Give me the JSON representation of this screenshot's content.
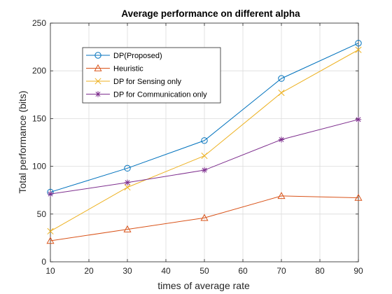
{
  "chart_data": {
    "type": "line",
    "title": "Average performance on different alpha",
    "xlabel": "times of average rate",
    "ylabel": "Total performance (bits)",
    "xlim": [
      10,
      90
    ],
    "ylim": [
      0,
      250
    ],
    "xticks": [
      10,
      20,
      30,
      40,
      50,
      60,
      70,
      80,
      90
    ],
    "yticks": [
      0,
      50,
      100,
      150,
      200,
      250
    ],
    "grid": true,
    "legend_position": "upper-left",
    "x": [
      10,
      30,
      50,
      70,
      90
    ],
    "series": [
      {
        "name": "DP(Proposed)",
        "color": "#0072BD",
        "marker": "circle",
        "values": [
          73,
          98,
          127,
          192,
          229
        ]
      },
      {
        "name": "Heuristic",
        "color": "#D95319",
        "marker": "triangle",
        "values": [
          22,
          34,
          46,
          69,
          67
        ]
      },
      {
        "name": "DP for Sensing only",
        "color": "#EDB120",
        "marker": "x",
        "values": [
          32,
          78,
          111,
          177,
          222
        ]
      },
      {
        "name": "DP for Communication only",
        "color": "#7E2F8E",
        "marker": "star",
        "values": [
          71,
          83,
          96,
          128,
          149
        ]
      }
    ]
  }
}
